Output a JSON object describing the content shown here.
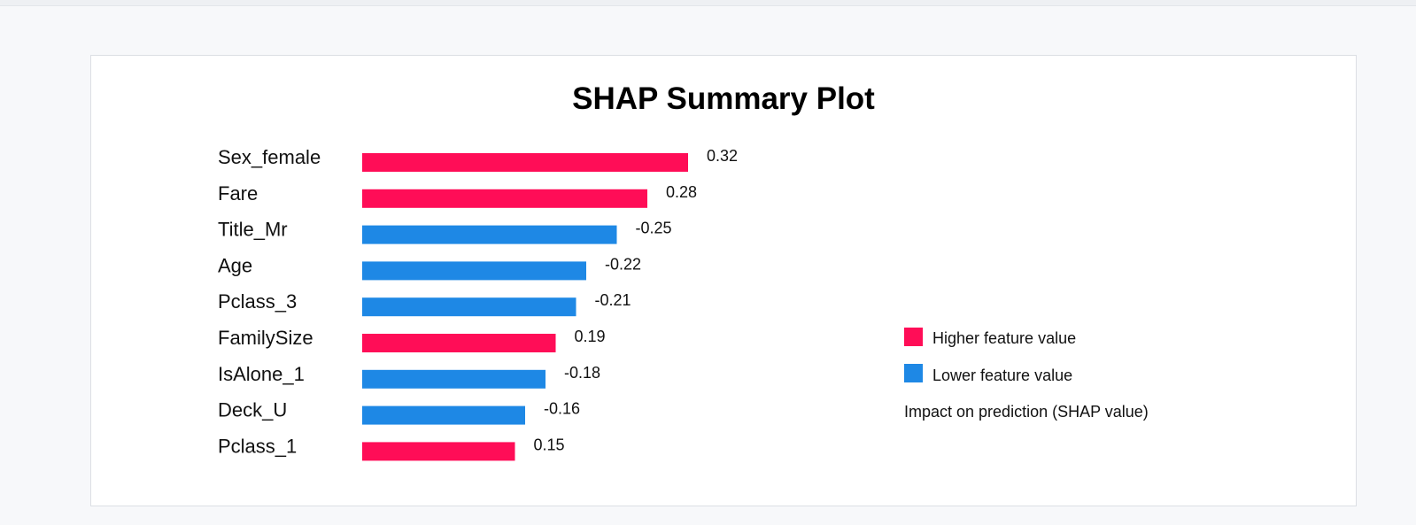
{
  "colors": {
    "higher": "#ff0d57",
    "lower": "#1e88e5"
  },
  "chart_data": {
    "type": "bar",
    "orientation": "horizontal",
    "title": "SHAP Summary Plot",
    "categories": [
      "Sex_female",
      "Fare",
      "Title_Mr",
      "Age",
      "Pclass_3",
      "FamilySize",
      "IsAlone_1",
      "Deck_U",
      "Pclass_1"
    ],
    "values": [
      0.32,
      0.28,
      -0.25,
      -0.22,
      -0.21,
      0.19,
      -0.18,
      -0.16,
      0.15
    ],
    "value_labels": [
      "0.32",
      "0.28",
      "-0.25",
      "-0.22",
      "-0.21",
      "0.19",
      "-0.18",
      "-0.16",
      "0.15"
    ],
    "bar_color_group": [
      "higher",
      "higher",
      "lower",
      "lower",
      "lower",
      "higher",
      "lower",
      "lower",
      "higher"
    ],
    "bar_length": "absolute value",
    "axis_shown": false,
    "grid": false,
    "legend": {
      "placement": "right",
      "entries": [
        {
          "label": "Higher feature value",
          "color_key": "higher"
        },
        {
          "label": "Lower feature value",
          "color_key": "lower"
        }
      ],
      "note": "Impact on prediction (SHAP value)"
    }
  }
}
